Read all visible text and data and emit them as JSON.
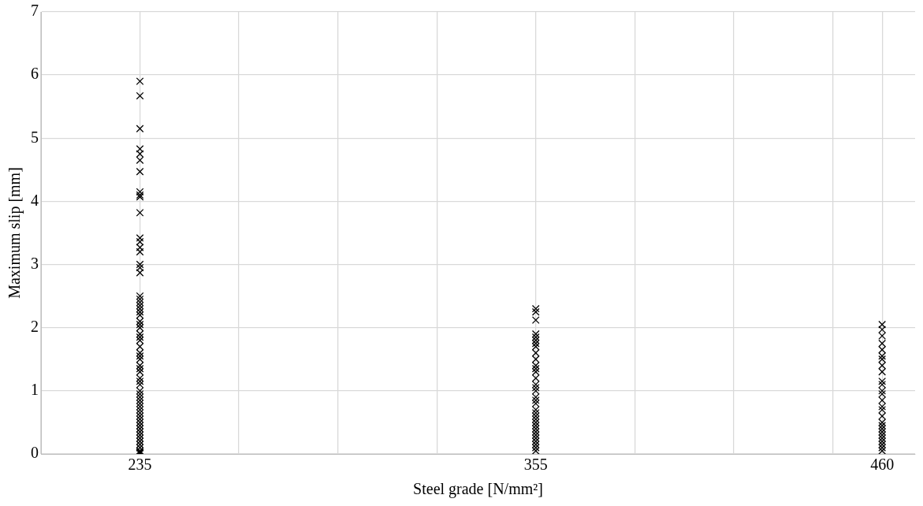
{
  "chart_data": {
    "type": "scatter",
    "xlabel": "Steel grade [N/mm²]",
    "ylabel": "Maximum slip [mm]",
    "xlim": [
      205,
      470
    ],
    "xticks": [
      {
        "value": 205,
        "label": null
      },
      235,
      {
        "value": 265,
        "label": null
      },
      {
        "value": 295,
        "label": null
      },
      {
        "value": 325,
        "label": null
      },
      355,
      {
        "value": 385,
        "label": null
      },
      {
        "value": 415,
        "label": null
      },
      {
        "value": 445,
        "label": null
      },
      460
    ],
    "ylim": [
      0,
      7
    ],
    "yticks": [
      0,
      1,
      2,
      3,
      4,
      5,
      6,
      7
    ],
    "grid": true,
    "legend": false,
    "marker": "cross",
    "series": [
      {
        "color": "#000000",
        "x": [
          235,
          235,
          235,
          235,
          235,
          235,
          235,
          235,
          235,
          235,
          235,
          235,
          235,
          235,
          235,
          235,
          235,
          235,
          235,
          235,
          235,
          235,
          235,
          235,
          235,
          235,
          235,
          235,
          235,
          235,
          235,
          235,
          235,
          235,
          235,
          235,
          235,
          235,
          235,
          235,
          235,
          235,
          235,
          235,
          235,
          235,
          235,
          235,
          235,
          235,
          235,
          235,
          235,
          235,
          235,
          235,
          235,
          235,
          235,
          235,
          235,
          235,
          235,
          235
        ],
        "values": [
          5.9,
          5.67,
          5.15,
          4.83,
          4.75,
          4.65,
          4.47,
          4.15,
          4.1,
          4.07,
          3.82,
          3.42,
          3.36,
          3.27,
          3.2,
          3.0,
          2.95,
          2.87,
          2.5,
          2.45,
          2.4,
          2.35,
          2.3,
          2.25,
          2.2,
          2.1,
          2.05,
          2.0,
          1.9,
          1.85,
          1.8,
          1.7,
          1.6,
          1.55,
          1.5,
          1.4,
          1.35,
          1.3,
          1.2,
          1.15,
          1.1,
          1.0,
          0.95,
          0.9,
          0.85,
          0.8,
          0.75,
          0.7,
          0.65,
          0.6,
          0.55,
          0.5,
          0.45,
          0.4,
          0.35,
          0.3,
          0.25,
          0.2,
          0.15,
          0.1,
          0.05,
          0.03,
          0.02,
          0.01
        ]
      },
      {
        "color": "#000000",
        "x": [
          355,
          355,
          355,
          355,
          355,
          355,
          355,
          355,
          355,
          355,
          355,
          355,
          355,
          355,
          355,
          355,
          355,
          355,
          355,
          355,
          355,
          355,
          355,
          355,
          355,
          355,
          355,
          355,
          355,
          355,
          355,
          355,
          355,
          355
        ],
        "values": [
          2.3,
          2.25,
          2.12,
          1.9,
          1.85,
          1.8,
          1.75,
          1.7,
          1.6,
          1.5,
          1.4,
          1.35,
          1.3,
          1.2,
          1.1,
          1.05,
          1.0,
          0.9,
          0.85,
          0.8,
          0.7,
          0.65,
          0.6,
          0.55,
          0.5,
          0.45,
          0.4,
          0.35,
          0.3,
          0.25,
          0.2,
          0.15,
          0.1,
          0.05
        ]
      },
      {
        "color": "#000000",
        "x": [
          460,
          460,
          460,
          460,
          460,
          460,
          460,
          460,
          460,
          460,
          460,
          460,
          460,
          460,
          460,
          460,
          460,
          460,
          460,
          460,
          460,
          460,
          460,
          460,
          460,
          460,
          460
        ],
        "values": [
          2.05,
          1.97,
          1.87,
          1.75,
          1.65,
          1.55,
          1.5,
          1.4,
          1.3,
          1.15,
          1.1,
          1.0,
          0.95,
          0.85,
          0.75,
          0.7,
          0.6,
          0.5,
          0.45,
          0.4,
          0.35,
          0.3,
          0.25,
          0.2,
          0.15,
          0.1,
          0.05
        ]
      }
    ]
  }
}
